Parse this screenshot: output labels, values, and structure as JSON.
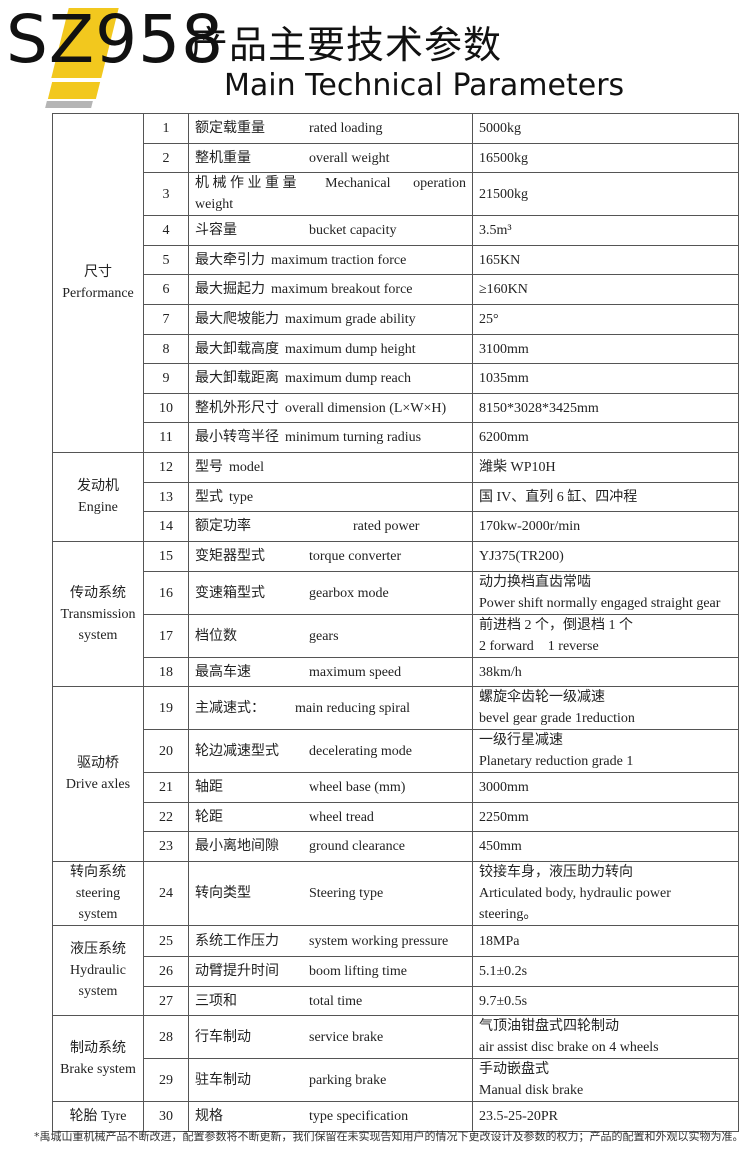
{
  "header": {
    "model": "SZ958",
    "title_cn": "产品主要技术参数",
    "title_en": "Main Technical Parameters",
    "brand_colors": {
      "yellow": "#f2c81e",
      "gray": "#b5b5b5"
    }
  },
  "groups": [
    {
      "label_cn": "尺寸",
      "label_en": "Performance",
      "rows": [
        {
          "no": "1",
          "item_cn": "额定载重量",
          "item_en": "rated loading",
          "value": [
            "5000kg"
          ]
        },
        {
          "no": "2",
          "item_cn": "整机重量",
          "item_en": "overall weight",
          "value": [
            "16500kg"
          ]
        },
        {
          "no": "3",
          "item_cn": "机 械 作 业 重 量",
          "item_en": "Mechanical operation weight",
          "value": [
            "21500kg"
          ]
        },
        {
          "no": "4",
          "item_cn": "斗容量",
          "item_en": "bucket capacity",
          "value": [
            "3.5m³"
          ]
        },
        {
          "no": "5",
          "item_cn": "最大牵引力",
          "item_en": "maximum traction force",
          "value": [
            "165KN"
          ]
        },
        {
          "no": "6",
          "item_cn": "最大掘起力",
          "item_en": "maximum breakout force",
          "value": [
            "≥160KN"
          ]
        },
        {
          "no": "7",
          "item_cn": "最大爬坡能力",
          "item_en": "maximum grade ability",
          "value": [
            "25°"
          ]
        },
        {
          "no": "8",
          "item_cn": "最大卸载高度",
          "item_en": "maximum dump height",
          "value": [
            "3100mm"
          ]
        },
        {
          "no": "9",
          "item_cn": "最大卸载距离",
          "item_en": "maximum dump reach",
          "value": [
            "1035mm"
          ]
        },
        {
          "no": "10",
          "item_cn": "整机外形尺寸",
          "item_en": "overall dimension (L×W×H)",
          "value": [
            "8150*3028*3425mm"
          ]
        },
        {
          "no": "11",
          "item_cn": "最小转弯半径",
          "item_en": "minimum turning radius",
          "value": [
            "6200mm"
          ]
        }
      ]
    },
    {
      "label_cn": "发动机",
      "label_en": "Engine",
      "rows": [
        {
          "no": "12",
          "item_cn": "型号",
          "item_en": "model",
          "value": [
            "潍柴 WP10H"
          ]
        },
        {
          "no": "13",
          "item_cn": "型式",
          "item_en": "type",
          "value": [
            "国 IV、直列 6 缸、四冲程"
          ]
        },
        {
          "no": "14",
          "item_cn": "额定功率",
          "item_en": "rated power",
          "value": [
            "170kw-2000r/min"
          ]
        }
      ]
    },
    {
      "label_cn": "传动系统",
      "label_en": "Transmission system",
      "rows": [
        {
          "no": "15",
          "item_cn": "变矩器型式",
          "item_en": "torque converter",
          "value": [
            "YJ375(TR200)"
          ]
        },
        {
          "no": "16",
          "item_cn": "变速箱型式",
          "item_en": "gearbox mode",
          "value": [
            "动力换档直齿常啮",
            "Power shift normally engaged straight gear"
          ]
        },
        {
          "no": "17",
          "item_cn": "档位数",
          "item_en": "gears",
          "value": [
            "前进档 2 个，倒退档 1 个",
            "2 forward　1 reverse"
          ]
        },
        {
          "no": "18",
          "item_cn": "最高车速",
          "item_en": "maximum speed",
          "value": [
            "38km/h"
          ]
        }
      ]
    },
    {
      "label_cn": "驱动桥",
      "label_en": "Drive axles",
      "rows": [
        {
          "no": "19",
          "item_cn": "主减速式：",
          "item_en": "main reducing spiral",
          "value": [
            "螺旋伞齿轮一级减速",
            "bevel gear grade 1reduction"
          ]
        },
        {
          "no": "20",
          "item_cn": "轮边减速型式",
          "item_en": "decelerating mode",
          "value": [
            "一级行星减速",
            "Planetary reduction grade 1"
          ]
        },
        {
          "no": "21",
          "item_cn": "轴距",
          "item_en": "wheel base (mm)",
          "value": [
            "3000mm"
          ]
        },
        {
          "no": "22",
          "item_cn": "轮距",
          "item_en": "wheel tread",
          "value": [
            "2250mm"
          ]
        },
        {
          "no": "23",
          "item_cn": "最小离地间隙",
          "item_en": "ground clearance",
          "value": [
            "450mm"
          ]
        }
      ]
    },
    {
      "label_cn": "转向系统",
      "label_en": "steering system",
      "rows": [
        {
          "no": "24",
          "item_cn": "转向类型",
          "item_en": "Steering type",
          "value": [
            "铰接车身，液压助力转向",
            "Articulated body, hydraulic power steering。"
          ]
        }
      ]
    },
    {
      "label_cn": "液压系统",
      "label_en": "Hydraulic system",
      "rows": [
        {
          "no": "25",
          "item_cn": "系统工作压力",
          "item_en": "system working pressure",
          "value": [
            "18MPa"
          ]
        },
        {
          "no": "26",
          "item_cn": "动臂提升时间",
          "item_en": "boom lifting time",
          "value": [
            "5.1±0.2s"
          ]
        },
        {
          "no": "27",
          "item_cn": "三项和",
          "item_en": "total time",
          "value": [
            "9.7±0.5s"
          ]
        }
      ]
    },
    {
      "label_cn": "制动系统",
      "label_en": "Brake system",
      "rows": [
        {
          "no": "28",
          "item_cn": "行车制动",
          "item_en": "service brake",
          "value": [
            "气顶油钳盘式四轮制动",
            "air assist disc brake on 4 wheels"
          ]
        },
        {
          "no": "29",
          "item_cn": "驻车制动",
          "item_en": "parking brake",
          "value": [
            "手动嵌盘式",
            "Manual disk brake"
          ]
        }
      ]
    },
    {
      "label_cn": "轮胎",
      "label_en": "Tyre",
      "inline_label": true,
      "rows": [
        {
          "no": "30",
          "item_cn": "规格",
          "item_en": "type specification",
          "value": [
            "23.5-25-20PR"
          ]
        }
      ]
    }
  ],
  "footnote": "*禹城山重机械产品不断改进，配置参数将不断更新，我们保留在未实现告知用户的情况下更改设计及参数的权力；产品的配置和外观以实物为准。"
}
